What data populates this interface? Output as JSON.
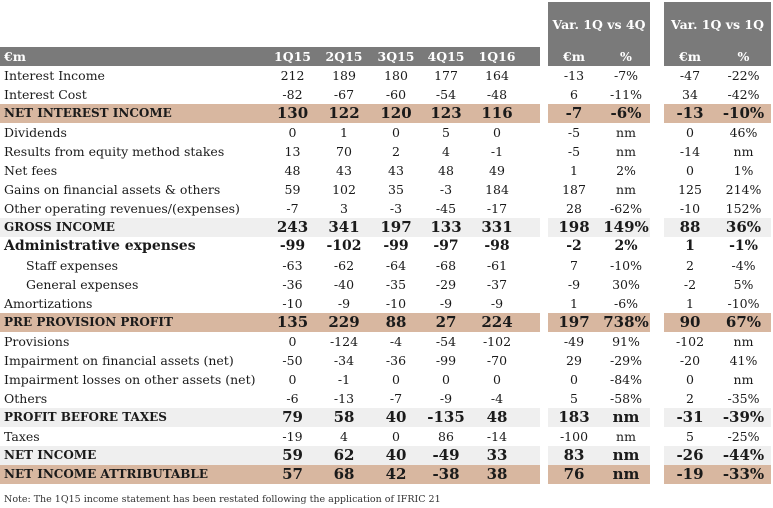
{
  "groups": {
    "var_1q_vs_4q": "Var. 1Q vs 4Q",
    "var_1q_vs_1q": "Var. 1Q vs 1Q"
  },
  "columns": [
    "€m",
    "1Q15",
    "2Q15",
    "3Q15",
    "4Q15",
    "1Q16",
    "€m",
    "%",
    "€m",
    "%"
  ],
  "rows": [
    {
      "label": "Interest Income",
      "values": [
        "212",
        "189",
        "180",
        "177",
        "164",
        "-13",
        "-7%",
        "-47",
        "-22%"
      ],
      "style": "normal"
    },
    {
      "label": "Interest Cost",
      "values": [
        "-82",
        "-67",
        "-60",
        "-54",
        "-48",
        "6",
        "-11%",
        "34",
        "-42%"
      ],
      "style": "normal"
    },
    {
      "label": "NET INTEREST INCOME",
      "values": [
        "130",
        "122",
        "120",
        "123",
        "116",
        "-7",
        "-6%",
        "-13",
        "-10%"
      ],
      "style": "tan"
    },
    {
      "label": "Dividends",
      "values": [
        "0",
        "1",
        "0",
        "5",
        "0",
        "-5",
        "nm",
        "0",
        "46%"
      ],
      "style": "normal"
    },
    {
      "label": "Results from equity method stakes",
      "values": [
        "13",
        "70",
        "2",
        "4",
        "-1",
        "-5",
        "nm",
        "-14",
        "nm"
      ],
      "style": "normal"
    },
    {
      "label": "Net fees",
      "values": [
        "48",
        "43",
        "43",
        "48",
        "49",
        "1",
        "2%",
        "0",
        "1%"
      ],
      "style": "normal"
    },
    {
      "label": "Gains on financial assets & others",
      "values": [
        "59",
        "102",
        "35",
        "-3",
        "184",
        "187",
        "nm",
        "125",
        "214%"
      ],
      "style": "normal"
    },
    {
      "label": "Other operating revenues/(expenses)",
      "values": [
        "-7",
        "3",
        "-3",
        "-45",
        "-17",
        "28",
        "-62%",
        "-10",
        "152%"
      ],
      "style": "normal"
    },
    {
      "label": "GROSS INCOME",
      "values": [
        "243",
        "341",
        "197",
        "133",
        "331",
        "198",
        "149%",
        "88",
        "36%"
      ],
      "style": "grey"
    },
    {
      "label": "Administrative expenses",
      "values": [
        "-99",
        "-102",
        "-99",
        "-97",
        "-98",
        "-2",
        "2%",
        "1",
        "-1%"
      ],
      "style": "boldplain"
    },
    {
      "label": "Staff expenses",
      "values": [
        "-63",
        "-62",
        "-64",
        "-68",
        "-61",
        "7",
        "-10%",
        "2",
        "-4%"
      ],
      "style": "indent"
    },
    {
      "label": "General expenses",
      "values": [
        "-36",
        "-40",
        "-35",
        "-29",
        "-37",
        "-9",
        "30%",
        "-2",
        "5%"
      ],
      "style": "indent"
    },
    {
      "label": "Amortizations",
      "values": [
        "-10",
        "-9",
        "-10",
        "-9",
        "-9",
        "1",
        "-6%",
        "1",
        "-10%"
      ],
      "style": "normal"
    },
    {
      "label": "PRE PROVISION PROFIT",
      "values": [
        "135",
        "229",
        "88",
        "27",
        "224",
        "197",
        "738%",
        "90",
        "67%"
      ],
      "style": "tan"
    },
    {
      "label": "Provisions",
      "values": [
        "0",
        "-124",
        "-4",
        "-54",
        "-102",
        "-49",
        "91%",
        "-102",
        "nm"
      ],
      "style": "normal"
    },
    {
      "label": "Impairment on financial assets (net)",
      "values": [
        "-50",
        "-34",
        "-36",
        "-99",
        "-70",
        "29",
        "-29%",
        "-20",
        "41%"
      ],
      "style": "normal"
    },
    {
      "label": "Impairment losses on other assets (net)",
      "values": [
        "0",
        "-1",
        "0",
        "0",
        "0",
        "0",
        "-84%",
        "0",
        "nm"
      ],
      "style": "normal"
    },
    {
      "label": "Others",
      "values": [
        "-6",
        "-13",
        "-7",
        "-9",
        "-4",
        "5",
        "-58%",
        "2",
        "-35%"
      ],
      "style": "normal"
    },
    {
      "label": "PROFIT BEFORE TAXES",
      "values": [
        "79",
        "58",
        "40",
        "-135",
        "48",
        "183",
        "nm",
        "-31",
        "-39%"
      ],
      "style": "grey"
    },
    {
      "label": "Taxes",
      "values": [
        "-19",
        "4",
        "0",
        "86",
        "-14",
        "-100",
        "nm",
        "5",
        "-25%"
      ],
      "style": "normal"
    },
    {
      "label": "NET INCOME",
      "values": [
        "59",
        "62",
        "40",
        "-49",
        "33",
        "83",
        "nm",
        "-26",
        "-44%"
      ],
      "style": "grey"
    },
    {
      "label": "NET INCOME ATTRIBUTABLE",
      "values": [
        "57",
        "68",
        "42",
        "-38",
        "38",
        "76",
        "nm",
        "-19",
        "-33%"
      ],
      "style": "tan"
    }
  ],
  "note": "Note: The 1Q15 income statement has been restated following the application of IFRIC 21",
  "colors": {
    "header": "#7a7a7a",
    "tan": "#d8b7a0",
    "grey": "#efefef"
  }
}
